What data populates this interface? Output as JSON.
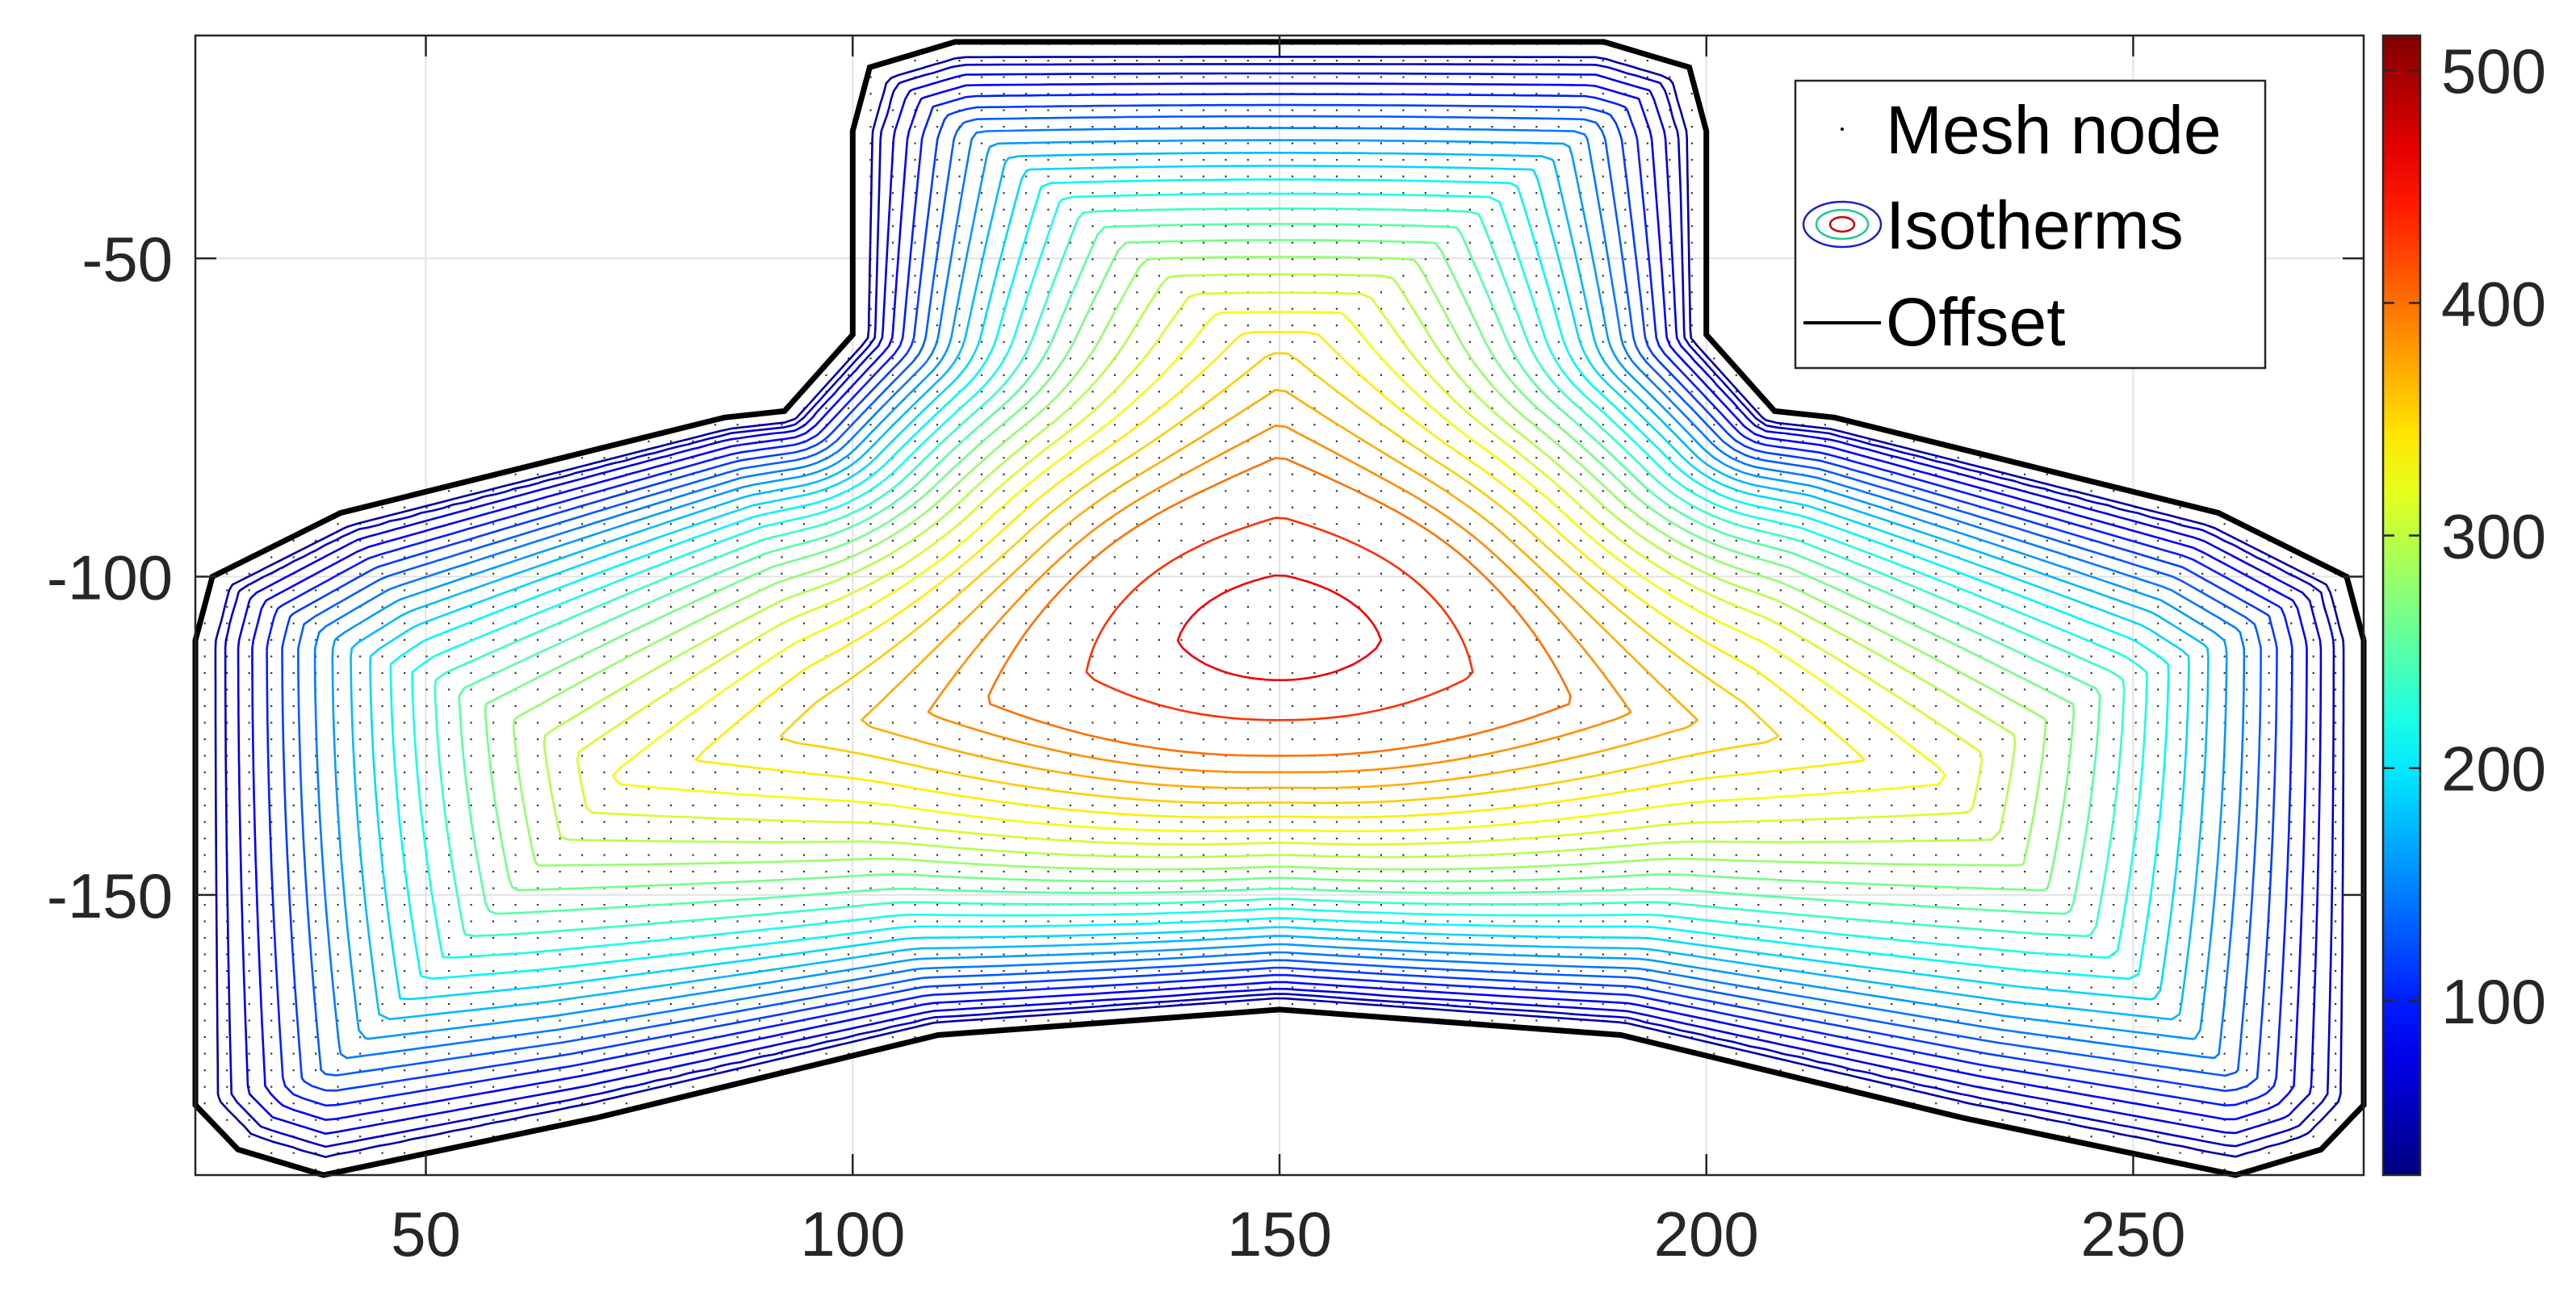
{
  "chart_data": {
    "type": "contour",
    "title": "",
    "xlabel": "",
    "ylabel": "",
    "xlim": [
      23,
      277
    ],
    "ylim": [
      -194,
      -15
    ],
    "xticks": [
      50,
      100,
      150,
      200,
      250
    ],
    "yticks": [
      -50,
      -100,
      -150
    ],
    "grid": true,
    "legend": {
      "position": "top-right",
      "entries": [
        "Mesh node",
        "Isotherms",
        "Offset"
      ]
    },
    "colorbar": {
      "colormap": "jet",
      "range": [
        25,
        515
      ],
      "ticks": [
        100,
        200,
        300,
        400,
        500
      ]
    },
    "contour_levels": [
      40,
      55,
      70,
      85,
      100,
      115,
      130,
      145,
      160,
      175,
      190,
      205,
      220,
      235,
      250,
      265,
      280,
      295,
      310,
      325,
      340,
      355,
      370,
      385,
      400,
      430,
      460,
      490
    ],
    "hot_spot": {
      "x": 150,
      "y": -110,
      "max_temperature": 515
    },
    "offset_boundary": [
      [
        112,
        -16
      ],
      [
        188,
        -16
      ],
      [
        198,
        -20
      ],
      [
        200,
        -30
      ],
      [
        200,
        -62
      ],
      [
        208,
        -74
      ],
      [
        215,
        -75
      ],
      [
        260,
        -90
      ],
      [
        275,
        -100
      ],
      [
        277,
        -110
      ],
      [
        277,
        -183
      ],
      [
        272,
        -190
      ],
      [
        262,
        -194
      ],
      [
        230,
        -185
      ],
      [
        190,
        -172
      ],
      [
        150,
        -168
      ],
      [
        110,
        -172
      ],
      [
        70,
        -185
      ],
      [
        38,
        -194
      ],
      [
        28,
        -190
      ],
      [
        23,
        -183
      ],
      [
        23,
        -110
      ],
      [
        25,
        -100
      ],
      [
        40,
        -90
      ],
      [
        85,
        -75
      ],
      [
        92,
        -74
      ],
      [
        100,
        -62
      ],
      [
        100,
        -30
      ],
      [
        102,
        -20
      ]
    ]
  }
}
